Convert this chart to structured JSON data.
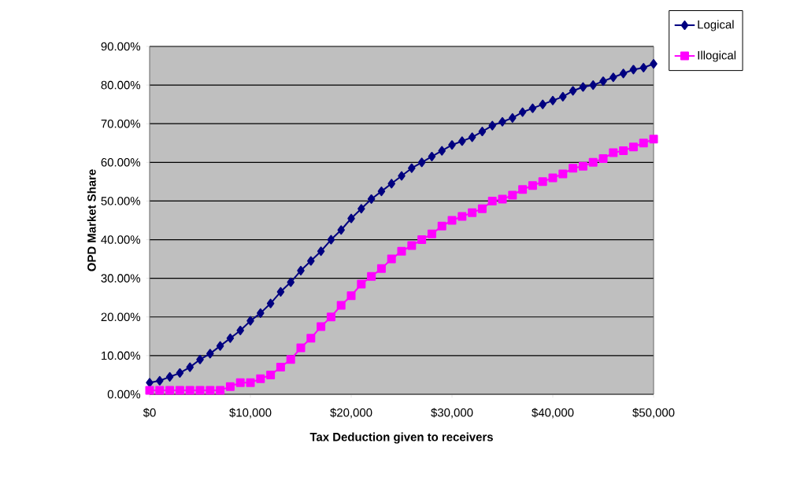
{
  "chart_data": {
    "type": "line",
    "xlabel": "Tax Deduction  given to receivers",
    "ylabel": "OPD Market Share",
    "x": [
      0,
      1000,
      2000,
      3000,
      4000,
      5000,
      6000,
      7000,
      8000,
      9000,
      10000,
      11000,
      12000,
      13000,
      14000,
      15000,
      16000,
      17000,
      18000,
      19000,
      20000,
      21000,
      22000,
      23000,
      24000,
      25000,
      26000,
      27000,
      28000,
      29000,
      30000,
      31000,
      32000,
      33000,
      34000,
      35000,
      36000,
      37000,
      38000,
      39000,
      40000,
      41000,
      42000,
      43000,
      44000,
      45000,
      46000,
      47000,
      48000,
      49000,
      50000
    ],
    "series": [
      {
        "name": "Logical",
        "color": "#000080",
        "marker": "diamond",
        "values": [
          3,
          3.5,
          4.5,
          5.5,
          7,
          9,
          10.5,
          12.5,
          14.5,
          16.5,
          19,
          21,
          23.5,
          26.5,
          29,
          32,
          34.5,
          37,
          40,
          42.5,
          45.5,
          48,
          50.5,
          52.5,
          54.5,
          56.5,
          58.5,
          60,
          61.5,
          63,
          64.5,
          65.5,
          66.5,
          68,
          69.5,
          70.5,
          71.5,
          73,
          74,
          75,
          76,
          77,
          78.5,
          79.5,
          80,
          81,
          82,
          83,
          84,
          84.5,
          85.5
        ]
      },
      {
        "name": "Illogical",
        "color": "#ff00ff",
        "marker": "square",
        "values": [
          1,
          1,
          1,
          1,
          1,
          1,
          1,
          1,
          2,
          3,
          3,
          4,
          5,
          7,
          9,
          12,
          14.5,
          17.5,
          20,
          23,
          25.5,
          28.5,
          30.5,
          32.5,
          35,
          37,
          38.5,
          40,
          41.5,
          43.5,
          45,
          46,
          47,
          48,
          50,
          50.5,
          51.5,
          53,
          54,
          55,
          56,
          57,
          58.5,
          59,
          60,
          61,
          62.5,
          63,
          64,
          65,
          66
        ]
      }
    ],
    "xlim": [
      0,
      50000
    ],
    "xticks": [
      {
        "value": 0,
        "label": "$0"
      },
      {
        "value": 10000,
        "label": "$10,000"
      },
      {
        "value": 20000,
        "label": "$20,000"
      },
      {
        "value": 30000,
        "label": "$30,000"
      },
      {
        "value": 40000,
        "label": "$40,000"
      },
      {
        "value": 50000,
        "label": "$50,000"
      }
    ],
    "ylim": [
      0,
      90
    ],
    "yticks": [
      {
        "value": 0,
        "label": "0.00%"
      },
      {
        "value": 10,
        "label": "10.00%"
      },
      {
        "value": 20,
        "label": "20.00%"
      },
      {
        "value": 30,
        "label": "30.00%"
      },
      {
        "value": 40,
        "label": "40.00%"
      },
      {
        "value": 50,
        "label": "50.00%"
      },
      {
        "value": 60,
        "label": "60.00%"
      },
      {
        "value": 70,
        "label": "70.00%"
      },
      {
        "value": 80,
        "label": "80.00%"
      },
      {
        "value": 90,
        "label": "90.00%"
      }
    ],
    "grid": "y",
    "legend": "top right",
    "line_style": "solid"
  }
}
